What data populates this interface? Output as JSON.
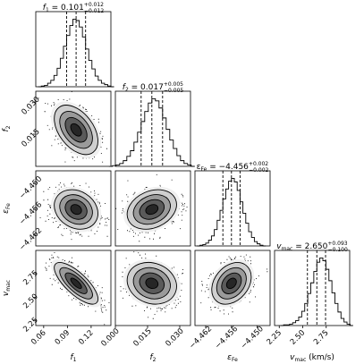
{
  "chart_data": {
    "type": "corner",
    "parameters": [
      {
        "key": "f1",
        "symbol": "f",
        "subscript": "1",
        "axis_label_sub": "1",
        "median": 0.101,
        "plus": 0.012,
        "minus": 0.012,
        "title_value": "0.101",
        "title_plus": "+0.012",
        "title_minus": "−0.012",
        "range": [
          0.05,
          0.145
        ],
        "ticks": [
          0.06,
          0.09,
          0.12
        ],
        "tick_labels": [
          "0.06",
          "0.09",
          "0.12"
        ],
        "hist_counts": [
          0,
          1,
          2,
          5,
          9,
          16,
          26,
          40,
          57,
          72,
          86,
          95,
          93,
          84,
          70,
          53,
          37,
          25,
          15,
          9,
          5,
          3,
          1,
          0
        ]
      },
      {
        "key": "f2",
        "symbol": "f",
        "subscript": "2",
        "axis_label_sub": "2",
        "median": 0.017,
        "plus": 0.005,
        "minus": 0.005,
        "title_value": "0.017",
        "title_plus": "+0.005",
        "title_minus": "−0.005",
        "range": [
          0.0,
          0.035
        ],
        "ticks": [
          0.015,
          0.03
        ],
        "tick_labels": [
          "0.015",
          "0.030"
        ],
        "ticks_x": [
          0.0,
          0.015,
          0.03
        ],
        "tick_labels_x": [
          "0.000",
          "0.015",
          "0.030"
        ],
        "hist_counts": [
          0,
          1,
          2,
          4,
          8,
          14,
          22,
          34,
          48,
          63,
          77,
          89,
          95,
          92,
          82,
          68,
          52,
          37,
          25,
          15,
          8,
          4,
          2,
          0
        ]
      },
      {
        "key": "eFe",
        "symbol": "ε",
        "subscript": "Fe",
        "axis_label_sub": "Fe",
        "median": -4.456,
        "plus": 0.002,
        "minus": 0.002,
        "title_value": "−4.456",
        "title_plus": "+0.002",
        "title_minus": "−0.002",
        "range": [
          -4.4645,
          -4.447
        ],
        "ticks": [
          -4.462,
          -4.456,
          -4.45
        ],
        "tick_labels": [
          "−4.462",
          "−4.456",
          "−4.450"
        ],
        "hist_counts": [
          0,
          1,
          2,
          4,
          8,
          14,
          23,
          36,
          50,
          66,
          80,
          91,
          95,
          90,
          78,
          62,
          46,
          32,
          20,
          12,
          6,
          3,
          1,
          0
        ]
      },
      {
        "key": "vmac",
        "symbol": "v",
        "subscript": "mac",
        "axis_label_sub": "mac",
        "axis_label_unit": "(km/s)",
        "median": 2.65,
        "plus": 0.093,
        "minus": 0.1,
        "title_value": "2.650",
        "title_plus": "+0.093",
        "title_minus": "−0.100",
        "range": [
          2.2,
          3.0
        ],
        "ticks": [
          2.25,
          2.5,
          2.75
        ],
        "tick_labels": [
          "2.25",
          "2.50",
          "2.75"
        ],
        "hist_counts": [
          0,
          1,
          1,
          2,
          4,
          7,
          12,
          20,
          31,
          45,
          60,
          76,
          89,
          95,
          91,
          79,
          63,
          46,
          31,
          19,
          10,
          5,
          2,
          0
        ]
      }
    ],
    "correlations": [
      {
        "row": 1,
        "col": 0,
        "rho": -0.45
      },
      {
        "row": 2,
        "col": 0,
        "rho": -0.2
      },
      {
        "row": 2,
        "col": 1,
        "rho": 0.25
      },
      {
        "row": 3,
        "col": 0,
        "rho": -0.75
      },
      {
        "row": 3,
        "col": 1,
        "rho": -0.15
      },
      {
        "row": 3,
        "col": 2,
        "rho": 0.3
      }
    ],
    "quantile_lines": [
      0.16,
      0.5,
      0.84
    ],
    "contour_levels_sigma": [
      0.5,
      1.0,
      1.5,
      2.0
    ],
    "title_separator": " = "
  }
}
